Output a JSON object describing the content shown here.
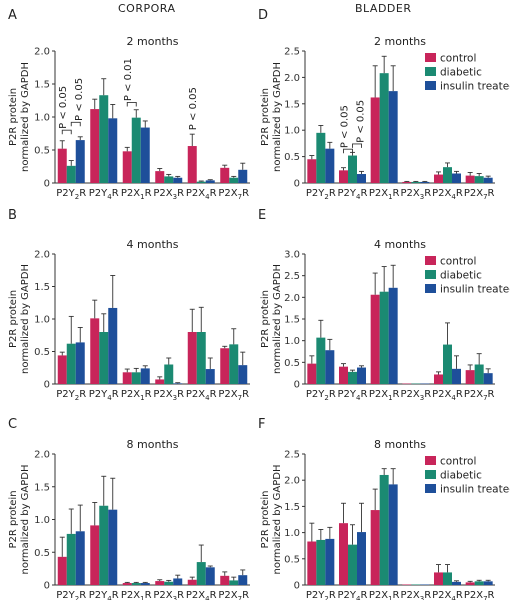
{
  "figure": {
    "column_titles": [
      "CORPORA",
      "BLADDER"
    ]
  },
  "legend_entries": [
    "control",
    "diabetic",
    "insulin treated"
  ],
  "colors": {
    "control": "#c8255a",
    "diabetic": "#1b8a72",
    "insulin_treated": "#1e4f9a"
  },
  "chart_data": [
    {
      "panel": "A",
      "title": "2 months",
      "type": "bar",
      "ylabel": "P2R protein normalized by GAPDH",
      "ylim": [
        0,
        2.0
      ],
      "yticks": [
        0,
        0.5,
        1.0,
        1.5,
        2.0
      ],
      "categories": [
        [
          "P2Y",
          "2",
          "R"
        ],
        [
          "P2Y",
          "4",
          "R"
        ],
        [
          "P2X",
          "1",
          "R"
        ],
        [
          "P2X",
          "3",
          "R"
        ],
        [
          "P2X",
          "4",
          "R"
        ],
        [
          "P2X",
          "7",
          "R"
        ]
      ],
      "legend": false,
      "series": [
        {
          "values": [
            0.52,
            1.12,
            0.48,
            0.18,
            0.56,
            0.23
          ],
          "errors": [
            0.12,
            0.15,
            0.06,
            0.04,
            0.18,
            0.04
          ]
        },
        {
          "values": [
            0.26,
            1.33,
            0.99,
            0.1,
            0.02,
            0.08
          ],
          "errors": [
            0.08,
            0.25,
            0.12,
            0.03,
            0.01,
            0.02
          ]
        },
        {
          "values": [
            0.65,
            0.98,
            0.84,
            0.08,
            0.04,
            0.2
          ],
          "errors": [
            0.05,
            0.21,
            0.1,
            0.02,
            0.01,
            0.1
          ]
        }
      ],
      "annotations": [
        "P < 0.05",
        "P < 0.05",
        "P < 0.01",
        "P < 0.05"
      ]
    },
    {
      "panel": "D",
      "title": "2 months",
      "type": "bar",
      "ylabel": "P2R protein normalized by GAPDH",
      "ylim": [
        0,
        2.5
      ],
      "yticks": [
        0,
        0.5,
        1.0,
        1.5,
        2.0,
        2.5
      ],
      "categories": [
        [
          "P2Y",
          "2",
          "R"
        ],
        [
          "P2Y",
          "4",
          "R"
        ],
        [
          "P2X",
          "1",
          "R"
        ],
        [
          "P2X",
          "3",
          "R"
        ],
        [
          "P2X",
          "4",
          "R"
        ],
        [
          "P2X",
          "7",
          "R"
        ]
      ],
      "legend": true,
      "series": [
        {
          "values": [
            0.45,
            0.24,
            1.62,
            0.02,
            0.16,
            0.14
          ],
          "errors": [
            0.07,
            0.05,
            0.6,
            0.01,
            0.05,
            0.06
          ]
        },
        {
          "values": [
            0.95,
            0.52,
            2.08,
            0.02,
            0.3,
            0.13
          ],
          "errors": [
            0.14,
            0.06,
            0.32,
            0.01,
            0.08,
            0.05
          ]
        },
        {
          "values": [
            0.65,
            0.17,
            1.74,
            0.02,
            0.18,
            0.1
          ],
          "errors": [
            0.12,
            0.05,
            0.48,
            0.01,
            0.04,
            0.03
          ]
        }
      ],
      "annotations": [
        "P < 0.05",
        "P < 0.05"
      ]
    },
    {
      "panel": "B",
      "title": "4 months",
      "type": "bar",
      "ylabel": "P2R protein normalized by GAPDH",
      "ylim": [
        0,
        2.0
      ],
      "yticks": [
        0,
        0.5,
        1.0,
        1.5,
        2.0
      ],
      "categories": [
        [
          "P2Y",
          "2",
          "R"
        ],
        [
          "P2Y",
          "4",
          "R"
        ],
        [
          "P2X",
          "1",
          "R"
        ],
        [
          "P2X",
          "3",
          "R"
        ],
        [
          "P2X",
          "4",
          "R"
        ],
        [
          "P2X",
          "7",
          "R"
        ]
      ],
      "legend": false,
      "series": [
        {
          "values": [
            0.44,
            1.01,
            0.18,
            0.07,
            0.8,
            0.55
          ],
          "errors": [
            0.05,
            0.28,
            0.05,
            0.04,
            0.35,
            0.03
          ]
        },
        {
          "values": [
            0.62,
            0.8,
            0.18,
            0.3,
            0.8,
            0.61
          ],
          "errors": [
            0.42,
            0.28,
            0.06,
            0.1,
            0.38,
            0.24
          ]
        },
        {
          "values": [
            0.64,
            1.17,
            0.24,
            0.01,
            0.23,
            0.29
          ],
          "errors": [
            0.23,
            0.5,
            0.04,
            0.01,
            0.17,
            0.2
          ]
        }
      ]
    },
    {
      "panel": "E",
      "title": "4 months",
      "type": "bar",
      "ylabel": "P2R protein normalized by GAPDH",
      "ylim": [
        0,
        3.0
      ],
      "yticks": [
        0,
        0.5,
        1.0,
        1.5,
        2.0,
        2.5,
        3.0
      ],
      "categories": [
        [
          "P2Y",
          "2",
          "R"
        ],
        [
          "P2Y",
          "4",
          "R"
        ],
        [
          "P2X",
          "1",
          "R"
        ],
        [
          "P2X",
          "3",
          "R"
        ],
        [
          "P2X",
          "4",
          "R"
        ],
        [
          "P2X",
          "7",
          "R"
        ]
      ],
      "legend": true,
      "series": [
        {
          "values": [
            0.47,
            0.4,
            2.06,
            0.01,
            0.22,
            0.32
          ],
          "errors": [
            0.18,
            0.07,
            0.5,
            0.0,
            0.06,
            0.12
          ]
        },
        {
          "values": [
            1.07,
            0.28,
            2.13,
            0.01,
            0.91,
            0.45
          ],
          "errors": [
            0.4,
            0.04,
            0.58,
            0.0,
            0.5,
            0.25
          ]
        },
        {
          "values": [
            0.78,
            0.38,
            2.22,
            0.01,
            0.35,
            0.25
          ],
          "errors": [
            0.25,
            0.04,
            0.52,
            0.0,
            0.3,
            0.1
          ]
        }
      ]
    },
    {
      "panel": "C",
      "title": "8 months",
      "type": "bar",
      "ylabel": "P2R protein normalized by GAPDH",
      "ylim": [
        0,
        2.0
      ],
      "yticks": [
        0,
        0.5,
        1.0,
        1.5,
        2.0
      ],
      "categories": [
        [
          "P2Y",
          "2",
          "R"
        ],
        [
          "P2Y",
          "4",
          "R"
        ],
        [
          "P2X",
          "1",
          "R"
        ],
        [
          "P2X",
          "3",
          "R"
        ],
        [
          "P2X",
          "4",
          "R"
        ],
        [
          "P2X",
          "7",
          "R"
        ]
      ],
      "legend": false,
      "series": [
        {
          "values": [
            0.43,
            0.91,
            0.03,
            0.06,
            0.08,
            0.14
          ],
          "errors": [
            0.3,
            0.35,
            0.01,
            0.02,
            0.04,
            0.06
          ]
        },
        {
          "values": [
            0.78,
            1.21,
            0.03,
            0.05,
            0.35,
            0.07
          ],
          "errors": [
            0.38,
            0.45,
            0.01,
            0.02,
            0.26,
            0.05
          ]
        },
        {
          "values": [
            0.82,
            1.15,
            0.03,
            0.1,
            0.27,
            0.15
          ],
          "errors": [
            0.4,
            0.48,
            0.01,
            0.05,
            0.02,
            0.08
          ]
        }
      ]
    },
    {
      "panel": "F",
      "title": "8 months",
      "type": "bar",
      "ylabel": "P2R protein normalized by GAPDH",
      "ylim": [
        0,
        2.5
      ],
      "yticks": [
        0,
        0.5,
        1.0,
        1.5,
        2.0,
        2.5
      ],
      "categories": [
        [
          "P2Y",
          "2",
          "R"
        ],
        [
          "P2Y",
          "4",
          "R"
        ],
        [
          "P2X",
          "1",
          "R"
        ],
        [
          "P2X",
          "3",
          "R"
        ],
        [
          "P2X",
          "4",
          "R"
        ],
        [
          "P2X",
          "7",
          "R"
        ]
      ],
      "legend": true,
      "series": [
        {
          "values": [
            0.83,
            1.18,
            1.43,
            0.01,
            0.24,
            0.05
          ],
          "errors": [
            0.35,
            0.38,
            0.4,
            0.0,
            0.15,
            0.02
          ]
        },
        {
          "values": [
            0.86,
            0.77,
            2.1,
            0.01,
            0.24,
            0.07
          ],
          "errors": [
            0.2,
            0.38,
            0.12,
            0.0,
            0.15,
            0.02
          ]
        },
        {
          "values": [
            0.88,
            1.01,
            1.92,
            0.01,
            0.06,
            0.07
          ],
          "errors": [
            0.22,
            0.55,
            0.3,
            0.0,
            0.02,
            0.02
          ]
        }
      ]
    }
  ]
}
